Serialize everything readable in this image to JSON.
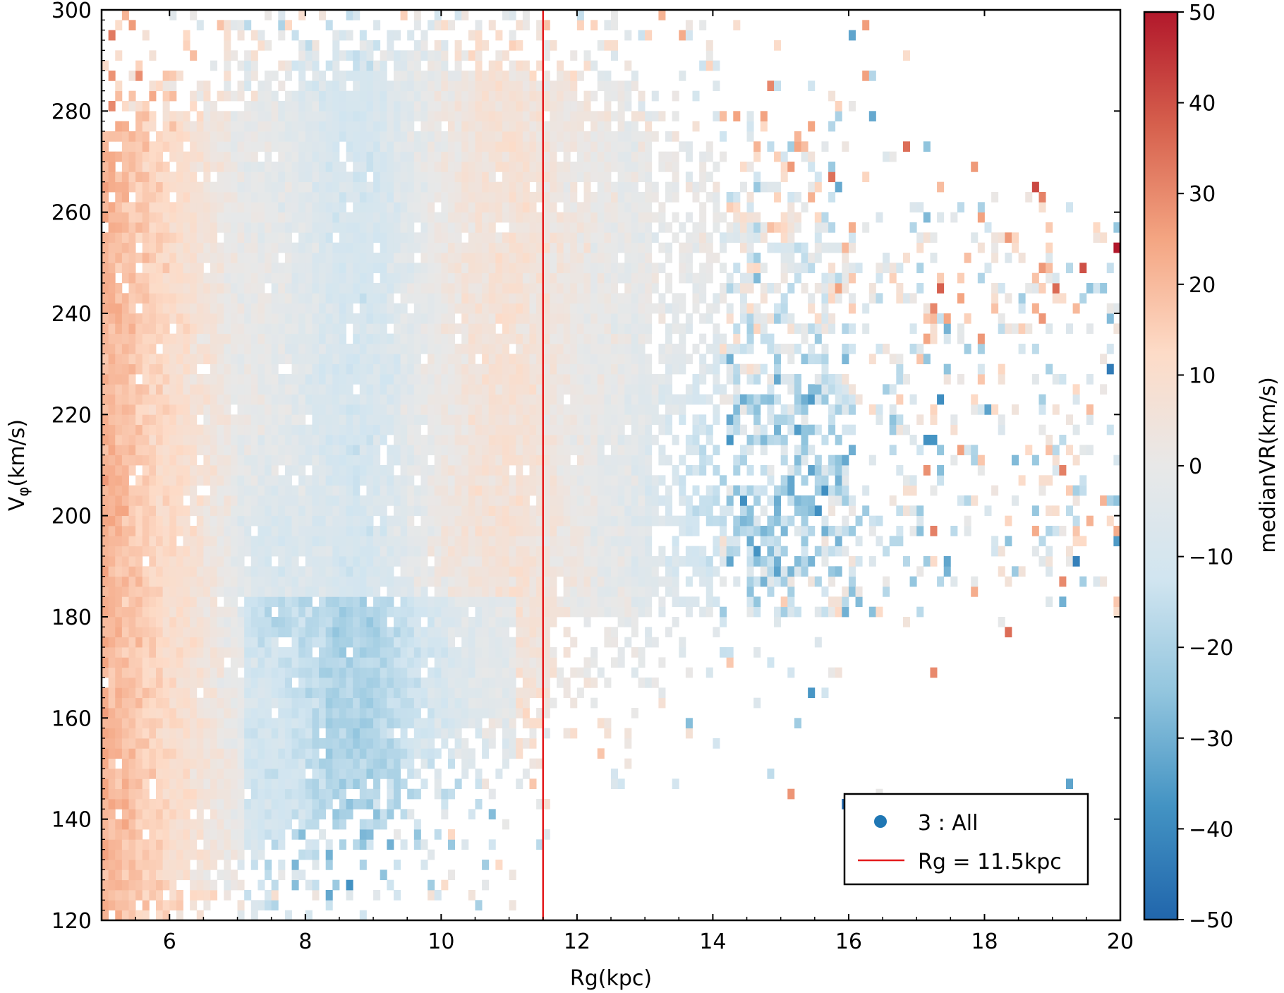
{
  "chart_data": {
    "type": "heatmap",
    "title": "",
    "xlabel": "Rg(kpc)",
    "ylabel_main": "V",
    "ylabel_sub": "φ",
    "ylabel_rest": "(km/s)",
    "xlim": [
      5,
      20
    ],
    "ylim": [
      120,
      300
    ],
    "xticks": [
      6,
      8,
      10,
      12,
      14,
      16,
      18,
      20
    ],
    "yticks": [
      120,
      140,
      160,
      180,
      200,
      220,
      240,
      260,
      280,
      300
    ],
    "colorbar": {
      "label": "medianVR(km/s)",
      "range": [
        -50,
        50
      ],
      "ticks": [
        -50,
        -40,
        -30,
        -20,
        -10,
        0,
        10,
        20,
        30,
        40,
        50
      ],
      "tick_labels": [
        "−50",
        "−40",
        "−30",
        "−20",
        "−10",
        "0",
        "10",
        "20",
        "30",
        "40",
        "50"
      ],
      "colormap": "RdBu_r",
      "colors": [
        "#2166ac",
        "#4393c3",
        "#92c5de",
        "#d1e5f0",
        "#e8e8e8",
        "#fddbc7",
        "#f4a582",
        "#d6604d",
        "#b2182b"
      ]
    },
    "vline": {
      "x": 11.5,
      "color": "#e41a1c"
    },
    "legend": {
      "position": "lower-right",
      "entries": [
        {
          "label": "3 : All",
          "marker": "dot",
          "color": "#1f77b4"
        },
        {
          "label": "Rg = 11.5kpc",
          "marker": "line",
          "color": "#e41a1c"
        }
      ]
    },
    "description_bins": {
      "rg_bin_kpc": 0.1,
      "vphi_bin_kms": 2
    }
  }
}
